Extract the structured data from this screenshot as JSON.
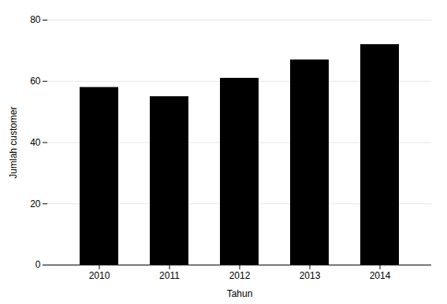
{
  "chart_data": {
    "type": "bar",
    "categories": [
      "2010",
      "2011",
      "2012",
      "2013",
      "2014"
    ],
    "values": [
      58,
      55,
      61,
      67,
      72
    ],
    "xlabel": "Tahun",
    "ylabel": "Jumlah customer",
    "ylim": [
      0,
      80
    ],
    "yticks": [
      0,
      20,
      40,
      60,
      80
    ],
    "grid": true
  }
}
